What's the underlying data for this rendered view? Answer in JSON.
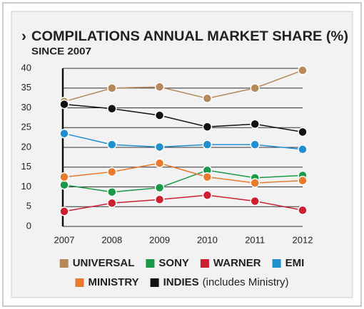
{
  "chart_data": {
    "type": "line",
    "title": "COMPILATIONS ANNUAL MARKET SHARE (%)",
    "subtitle": "SINCE 2007",
    "categories": [
      "2007",
      "2008",
      "2009",
      "2010",
      "2011",
      "2012"
    ],
    "series": [
      {
        "name": "UNIVERSAL",
        "color": "#b5895a",
        "values": [
          31.6,
          35,
          35.3,
          32.4,
          35,
          39.5
        ]
      },
      {
        "name": "SONY",
        "color": "#1a9a48",
        "values": [
          10.5,
          8.7,
          9.8,
          14.2,
          12.3,
          12.9
        ]
      },
      {
        "name": "WARNER",
        "color": "#cc2030",
        "values": [
          3.8,
          5.9,
          6.8,
          7.9,
          6.4,
          4.1
        ]
      },
      {
        "name": "EMI",
        "color": "#1f8fd0",
        "values": [
          23.5,
          20.7,
          20.1,
          20.7,
          20.7,
          19.5
        ]
      },
      {
        "name": "MINISTRY",
        "color": "#e87a2e",
        "values": [
          12.5,
          13.8,
          16,
          12.5,
          11,
          11.6
        ]
      },
      {
        "name": "INDIES",
        "color": "#111111",
        "values": [
          30.9,
          29.8,
          28.1,
          25.2,
          25.9,
          23.9
        ]
      }
    ],
    "legend_note": "(includes Ministry)",
    "ylim": [
      0,
      40
    ],
    "yticks": [
      0,
      5,
      10,
      15,
      20,
      25,
      30,
      35,
      40
    ],
    "grid": true
  }
}
